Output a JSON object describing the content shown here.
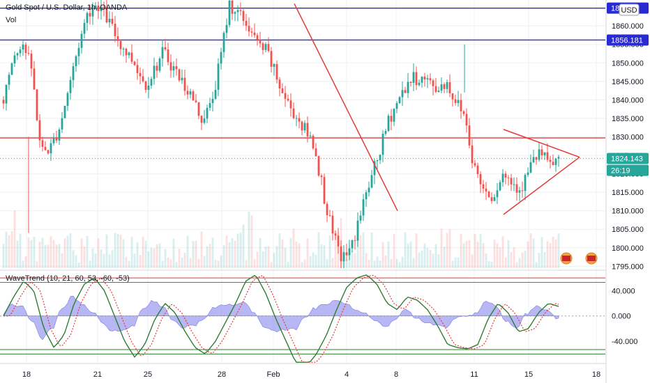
{
  "header": {
    "instrument": "Gold Spot / U.S. Dollar, 1h, OANDA",
    "volume_label": "Vol",
    "currency": "USD"
  },
  "colors": {
    "up": "#26a69a",
    "down": "#ef5350",
    "horizontal_level_blue": "#2a2ad2",
    "horizontal_level_red": "#e53935",
    "trendline": "#e53935",
    "price_tag": "#26a69a",
    "wt1": "#2e7d32",
    "wt2": "#e53935",
    "histogram": "#7b7bea",
    "overbought": "#e53935",
    "oversold": "#2e7d32"
  },
  "chart_data": [
    {
      "type": "candlestick",
      "title": "Gold Spot / U.S. Dollar, 1h, OANDA",
      "x_tick_labels": [
        "18",
        "21",
        "25",
        "28",
        "Feb",
        "4",
        "8",
        "11",
        "15",
        "18"
      ],
      "y_ticks": [
        1795,
        1800,
        1805,
        1810,
        1815,
        1820,
        1825,
        1830,
        1835,
        1840,
        1845,
        1850,
        1855,
        1860
      ],
      "y_tick_labels": [
        "1795.000",
        "1800.000",
        "1805.000",
        "1810.000",
        "1815.000",
        "1820.000",
        "1825.000",
        "1830.000",
        "1835.000",
        "1840.000",
        "1845.000",
        "1850.000",
        "1855.000",
        "1860.000"
      ],
      "ylim": [
        1794.5,
        1867.0
      ],
      "current_price": 1824.143,
      "current_price_label": "1824.143",
      "countdown_label": "26:19",
      "horizontal_levels": [
        {
          "price": 1864.8,
          "label": "18...03",
          "color": "blue"
        },
        {
          "price": 1856.181,
          "label": "1856.181",
          "color": "blue"
        },
        {
          "price": 1829.7,
          "color": "red"
        }
      ],
      "price_path": [
        1840,
        1852,
        1856,
        1848,
        1826,
        1827,
        1833,
        1844,
        1855,
        1864,
        1866,
        1862,
        1857,
        1853,
        1850,
        1844,
        1848,
        1853,
        1849,
        1845,
        1841,
        1835,
        1838,
        1850,
        1866,
        1863,
        1860,
        1855,
        1853,
        1846,
        1840,
        1836,
        1832,
        1828,
        1815,
        1803,
        1797,
        1800,
        1810,
        1818,
        1826,
        1835,
        1840,
        1845,
        1846,
        1845,
        1843,
        1845,
        1840,
        1836,
        1822,
        1816,
        1814,
        1820,
        1818,
        1816,
        1822,
        1826,
        1822,
        1824
      ],
      "triangle_apex_price": 1824.5,
      "triangle_upper_start_price": 1832,
      "triangle_lower_start_price": 1809,
      "descending_trendline": {
        "start_price": 1866,
        "end_price": 1810
      }
    },
    {
      "type": "line",
      "title": "WaveTrend (10, 21, 60, 53, -60, -53)",
      "y_ticks": [
        40,
        0,
        -40
      ],
      "y_tick_labels": [
        "40.000",
        "0.000",
        "-40.000"
      ],
      "ylim": [
        -75,
        70
      ],
      "levels": [
        60,
        53,
        -53,
        -60
      ],
      "series": [
        {
          "values": [
            0,
            30,
            55,
            40,
            -20,
            -50,
            -30,
            20,
            50,
            60,
            40,
            0,
            -40,
            -65,
            -45,
            -5,
            20,
            5,
            -25,
            -50,
            -60,
            -40,
            -10,
            20,
            55,
            65,
            35,
            -5,
            -40,
            -75,
            -80,
            -60,
            -30,
            10,
            45,
            60,
            65,
            50,
            20,
            10,
            30,
            25,
            10,
            -15,
            -45,
            -50,
            -52,
            -45,
            -5,
            20,
            5,
            -25,
            -20,
            5,
            20,
            15
          ]
        }
      ]
    }
  ]
}
